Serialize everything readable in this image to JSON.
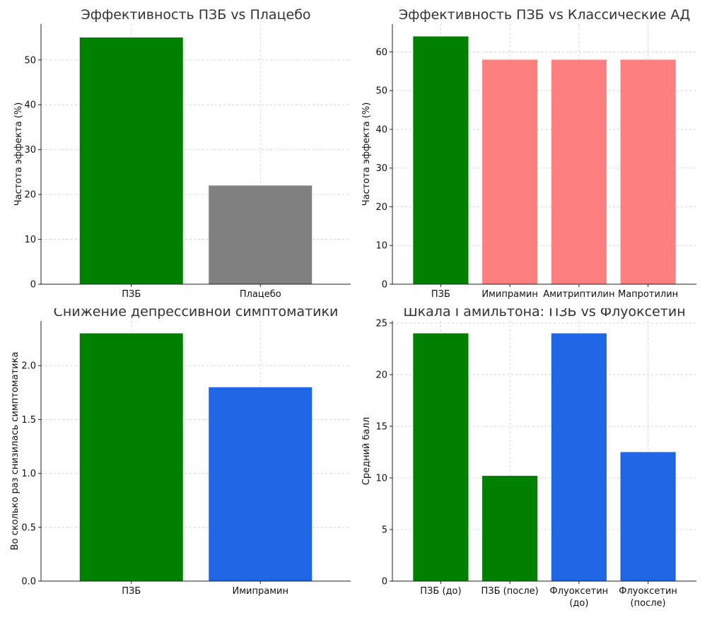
{
  "chart_data": [
    {
      "type": "bar",
      "title": "Эффективность ПЗБ vs Плацебо",
      "ylabel": "Частота эффекта (%)",
      "xlabel": "",
      "categories": [
        "ПЗБ",
        "Плацебо"
      ],
      "values": [
        55,
        22
      ],
      "colors": [
        "#008000",
        "#808080"
      ],
      "ylim": [
        0,
        58
      ],
      "yticks": [
        0,
        10,
        20,
        30,
        40,
        50
      ],
      "grid": true
    },
    {
      "type": "bar",
      "title": "Эффективность ПЗБ vs Классические АД",
      "ylabel": "Частота эффекта (%)",
      "xlabel": "",
      "categories": [
        "ПЗБ",
        "Имипрамин",
        "Амитриптилин",
        "Мапротилин"
      ],
      "values": [
        64,
        58,
        58,
        58
      ],
      "colors": [
        "#008000",
        "#ff8080",
        "#ff8080",
        "#ff8080"
      ],
      "ylim": [
        0,
        67.2
      ],
      "yticks": [
        0,
        10,
        20,
        30,
        40,
        50,
        60
      ],
      "grid": true
    },
    {
      "type": "bar",
      "title": "Снижение депрессивной симптоматики",
      "ylabel": "Во сколько раз снизилась симптоматика",
      "xlabel": "",
      "categories": [
        "ПЗБ",
        "Имипрамин"
      ],
      "values": [
        2.3,
        1.8
      ],
      "colors": [
        "#008000",
        "#1f66e5"
      ],
      "ylim": [
        0,
        2.415
      ],
      "yticks": [
        0.0,
        0.5,
        1.0,
        1.5,
        2.0
      ],
      "tick_decimals": 1,
      "grid": true
    },
    {
      "type": "bar",
      "title": "Шкала Гамильтона: ПЗБ vs Флуоксетин",
      "ylabel": "Средний балл",
      "xlabel": "",
      "categories": [
        "ПЗБ (до)",
        "ПЗБ (после)",
        "Флуоксетин\n(до)",
        "Флуоксетин\n(после)"
      ],
      "values": [
        24,
        10.2,
        24,
        12.5
      ],
      "colors": [
        "#008000",
        "#008000",
        "#1f66e5",
        "#1f66e5"
      ],
      "ylim": [
        0,
        25.2
      ],
      "yticks": [
        0,
        5,
        10,
        15,
        20,
        25
      ],
      "grid": true
    }
  ]
}
